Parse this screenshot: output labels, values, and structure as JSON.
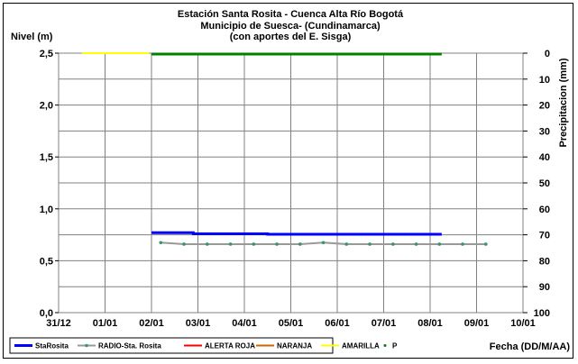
{
  "chart_data": {
    "type": "line",
    "title": [
      "Estación Santa Rosita - Cuenca Alta Río Bogotá",
      "Municipio de Suesca- (Cundinamarca)",
      "(con aportes del  E. Sisga)"
    ],
    "ylabel": "Nivel (m)",
    "y2label": "Precipitacion (mm)",
    "xlabel": "Fecha (DD/M/AA)",
    "x_ticks": [
      "31/12",
      "01/01",
      "02/01",
      "03/01",
      "04/01",
      "05/01",
      "06/01",
      "07/01",
      "08/01",
      "09/01",
      "10/01"
    ],
    "y_ticks": [
      "0,0",
      "0,5",
      "1,0",
      "1,5",
      "2,0",
      "2,5"
    ],
    "y2_ticks": [
      "0",
      "10",
      "20",
      "30",
      "40",
      "50",
      "60",
      "70",
      "80",
      "90",
      "100"
    ],
    "xlim": [
      0,
      10
    ],
    "ylim": [
      0,
      2.5
    ],
    "y2lim": [
      100,
      0
    ],
    "grid": true,
    "legend_position": "bottom",
    "series": [
      {
        "name": "StaRosita",
        "color": "#0000ff",
        "style": "solid-thick",
        "x": [
          2.0,
          2.9,
          2.9,
          4.5,
          4.5,
          8.2,
          8.25
        ],
        "y": [
          0.77,
          0.77,
          0.76,
          0.76,
          0.755,
          0.755,
          0.755
        ]
      },
      {
        "name": "RADIO-Sta. Rosita",
        "color": "#999999",
        "marker_color": "#339966",
        "style": "line-markers",
        "x": [
          2.2,
          2.7,
          3.2,
          3.7,
          4.2,
          4.7,
          5.2,
          5.7,
          6.2,
          6.7,
          7.2,
          7.7,
          8.2,
          8.7,
          9.2
        ],
        "y": [
          0.675,
          0.66,
          0.66,
          0.66,
          0.66,
          0.66,
          0.66,
          0.675,
          0.66,
          0.66,
          0.66,
          0.66,
          0.66,
          0.66,
          0.66
        ]
      },
      {
        "name": "ALERTA ROJA",
        "color": "#ff0000",
        "style": "solid",
        "x": [],
        "y": []
      },
      {
        "name": "NARANJA",
        "color": "#cc6600",
        "style": "solid",
        "x": [],
        "y": []
      },
      {
        "name": "AMARILLA",
        "color": "#ffff00",
        "style": "solid",
        "x": [
          0.5,
          1.95
        ],
        "y": [
          2.5,
          2.5
        ]
      },
      {
        "name": "P",
        "color": "#008000",
        "style": "markers-dense",
        "axis": "y2",
        "x": [
          2.0,
          8.25
        ],
        "y": [
          0,
          0
        ]
      }
    ]
  }
}
